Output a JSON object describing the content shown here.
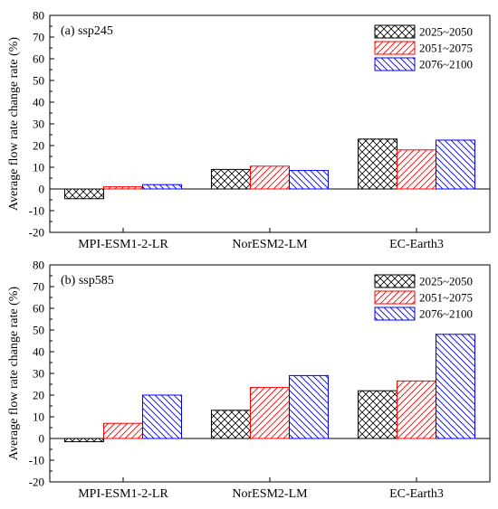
{
  "chart_data": [
    {
      "type": "bar",
      "panel_label": "(a) ssp245",
      "ylabel": "Average flow rate change rate (%)",
      "ylim": [
        -20,
        80
      ],
      "yticks": [
        -20,
        -10,
        0,
        10,
        20,
        30,
        40,
        50,
        60,
        70,
        80
      ],
      "categories": [
        "MPI-ESM1-2-LR",
        "NorESM2-LM",
        "EC-Earth3"
      ],
      "series": [
        {
          "name": "2025~2050",
          "values": [
            -4.5,
            9,
            23
          ],
          "color": "#000000",
          "pattern": "crosshatch"
        },
        {
          "name": "2051~2075",
          "values": [
            1,
            10.5,
            18
          ],
          "color": "#ff0000",
          "pattern": "forward-diagonal"
        },
        {
          "name": "2076~2100",
          "values": [
            2,
            8.5,
            22.5
          ],
          "color": "#0000ff",
          "pattern": "back-diagonal"
        }
      ],
      "legend_position": "top-right",
      "grid": false
    },
    {
      "type": "bar",
      "panel_label": "(b) ssp585",
      "ylabel": "Average flow rate change rate (%)",
      "ylim": [
        -20,
        80
      ],
      "yticks": [
        -20,
        -10,
        0,
        10,
        20,
        30,
        40,
        50,
        60,
        70,
        80
      ],
      "categories": [
        "MPI-ESM1-2-LR",
        "NorESM2-LM",
        "EC-Earth3"
      ],
      "series": [
        {
          "name": "2025~2050",
          "values": [
            -1.5,
            13,
            22
          ],
          "color": "#000000",
          "pattern": "crosshatch"
        },
        {
          "name": "2051~2075",
          "values": [
            7,
            23.5,
            26.5
          ],
          "color": "#ff0000",
          "pattern": "forward-diagonal"
        },
        {
          "name": "2076~2100",
          "values": [
            20,
            29,
            48
          ],
          "color": "#0000ff",
          "pattern": "back-diagonal"
        }
      ],
      "legend_position": "top-right",
      "grid": false
    }
  ]
}
